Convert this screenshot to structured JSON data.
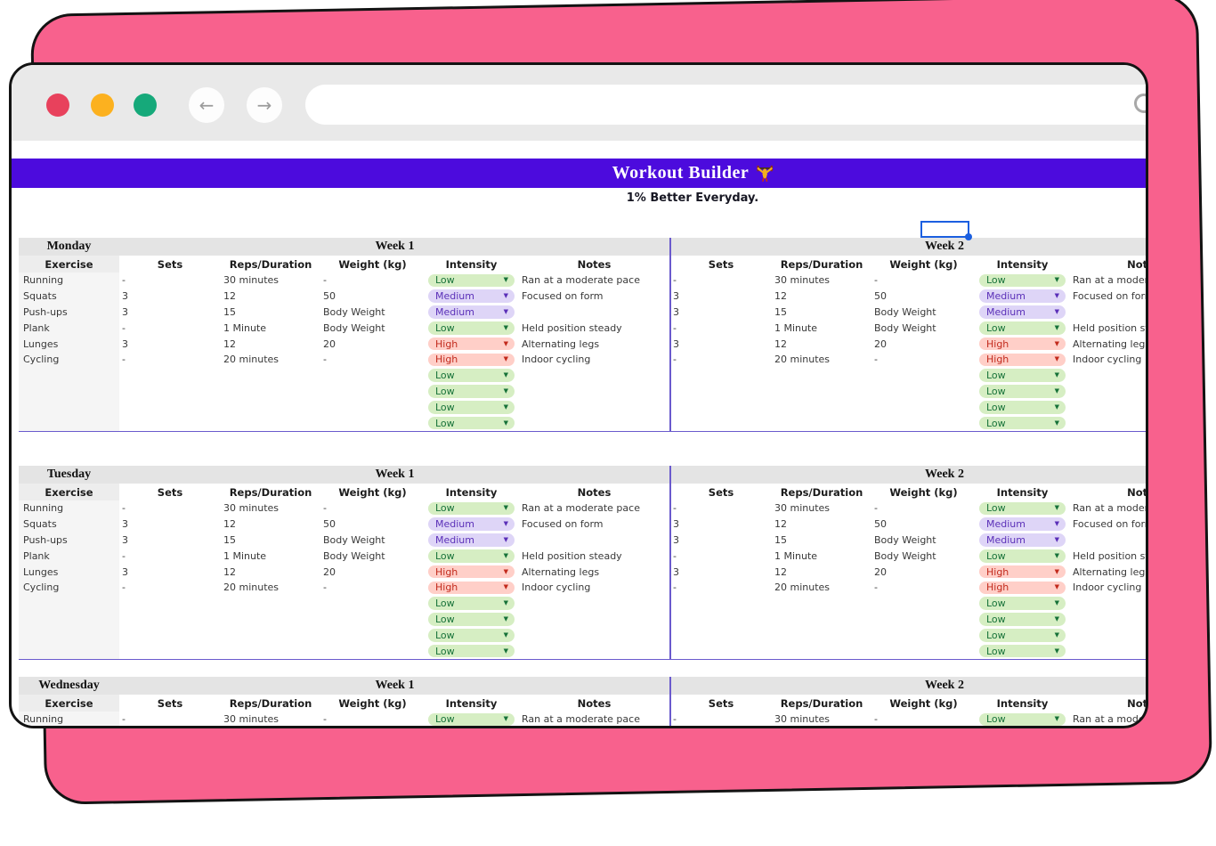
{
  "browser": {
    "traffic_lights": [
      {
        "name": "close",
        "color": "#e8415c"
      },
      {
        "name": "minimize",
        "color": "#fcb11f"
      },
      {
        "name": "maximize",
        "color": "#16a97a"
      }
    ],
    "back_glyph": "←",
    "forward_glyph": "→",
    "url_value": ""
  },
  "sheet": {
    "title": "Workout Builder",
    "title_icon": "weightlifter",
    "subtitle": "1% Better Everyday.",
    "days": [
      "Monday",
      "Tuesday",
      "Wednesday"
    ],
    "week_labels": [
      "Week 1",
      "Week 2"
    ],
    "column_headers": [
      "Exercise",
      "Sets",
      "Reps/Duration",
      "Weight (kg)",
      "Intensity",
      "Notes"
    ],
    "rows": [
      {
        "exercise": "Running",
        "sets": "-",
        "reps": "30 minutes",
        "weight": "-",
        "intensity": "Low",
        "notes": "Ran at a moderate pace"
      },
      {
        "exercise": "Squats",
        "sets": "3",
        "reps": "12",
        "weight": "50",
        "intensity": "Medium",
        "notes": "Focused on form"
      },
      {
        "exercise": "Push-ups",
        "sets": "3",
        "reps": "15",
        "weight": "Body Weight",
        "intensity": "Medium",
        "notes": ""
      },
      {
        "exercise": "Plank",
        "sets": "-",
        "reps": "1 Minute",
        "weight": "Body Weight",
        "intensity": "Low",
        "notes": "Held position steady"
      },
      {
        "exercise": "Lunges",
        "sets": "3",
        "reps": "12",
        "weight": "20",
        "intensity": "High",
        "notes": "Alternating legs"
      },
      {
        "exercise": "Cycling",
        "sets": "-",
        "reps": "20 minutes",
        "weight": "-",
        "intensity": "High",
        "notes": "Indoor cycling"
      },
      {
        "exercise": "",
        "sets": "",
        "reps": "",
        "weight": "",
        "intensity": "Low",
        "notes": ""
      },
      {
        "exercise": "",
        "sets": "",
        "reps": "",
        "weight": "",
        "intensity": "Low",
        "notes": ""
      },
      {
        "exercise": "",
        "sets": "",
        "reps": "",
        "weight": "",
        "intensity": "Low",
        "notes": ""
      },
      {
        "exercise": "",
        "sets": "",
        "reps": "",
        "weight": "",
        "intensity": "Low",
        "notes": ""
      }
    ],
    "intensity_dropdown_arrow": "▼"
  },
  "colors": {
    "backdrop_pink": "#f8618d",
    "header_purple": "#4c0bdd",
    "divider_purple": "#6a5acd",
    "selection_blue": "#1b5fe0",
    "intensity": {
      "Low": {
        "bg": "#d6eec3",
        "fg": "#177239"
      },
      "Medium": {
        "bg": "#ded5f7",
        "fg": "#5a2fb8"
      },
      "High": {
        "bg": "#ffcfc8",
        "fg": "#c22a1c"
      }
    }
  }
}
